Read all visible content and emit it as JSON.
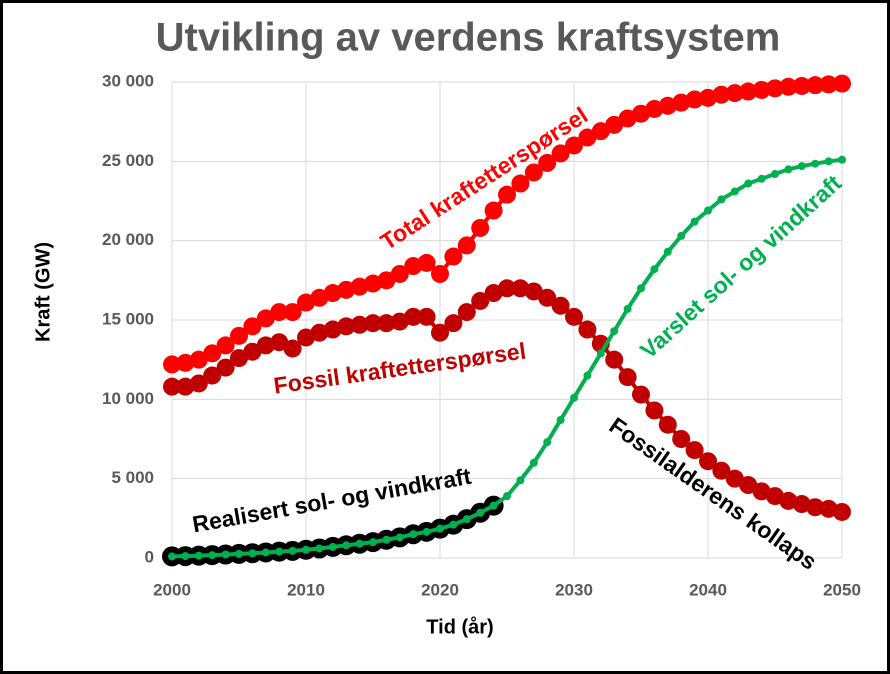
{
  "chart_data": {
    "type": "line",
    "title": "Utvikling av verdens kraftsystem",
    "x_label": "Tid (år)",
    "y_label": "Kraft (GW)",
    "x": [
      2000,
      2001,
      2002,
      2003,
      2004,
      2005,
      2006,
      2007,
      2008,
      2009,
      2010,
      2011,
      2012,
      2013,
      2014,
      2015,
      2016,
      2017,
      2018,
      2019,
      2020,
      2021,
      2022,
      2023,
      2024,
      2025,
      2026,
      2027,
      2028,
      2029,
      2030,
      2031,
      2032,
      2033,
      2034,
      2035,
      2036,
      2037,
      2038,
      2039,
      2040,
      2041,
      2042,
      2043,
      2044,
      2045,
      2046,
      2047,
      2048,
      2049,
      2050
    ],
    "series": [
      {
        "name": "Fossil kraftetterspørsel",
        "color": "#c00000",
        "marker_size": 9,
        "values": [
          10800,
          10800,
          11000,
          11500,
          12000,
          12600,
          13000,
          13400,
          13600,
          13200,
          13900,
          14200,
          14400,
          14600,
          14700,
          14800,
          14800,
          14900,
          15200,
          15200,
          14200,
          14800,
          15500,
          16200,
          16700,
          17000,
          17000,
          16800,
          16400,
          15900,
          15200,
          14400,
          13500,
          12500,
          11400,
          10300,
          9300,
          8400,
          7500,
          6800,
          6100,
          5500,
          5000,
          4600,
          4200,
          3900,
          3600,
          3400,
          3200,
          3100,
          2900
        ]
      },
      {
        "name": "Total kraftetterspørsel",
        "color": "#ff0000",
        "marker_size": 9,
        "values": [
          12200,
          12300,
          12500,
          12900,
          13400,
          14000,
          14600,
          15100,
          15500,
          15500,
          16100,
          16400,
          16700,
          16900,
          17100,
          17300,
          17500,
          17900,
          18400,
          18600,
          17900,
          19000,
          19700,
          20800,
          21900,
          22900,
          23600,
          24300,
          24900,
          25500,
          26000,
          26500,
          26900,
          27300,
          27700,
          28000,
          28300,
          28500,
          28700,
          28900,
          29000,
          29200,
          29300,
          29400,
          29500,
          29600,
          29700,
          29750,
          29800,
          29850,
          29900
        ]
      },
      {
        "name": "Realisert sol- og vindkraft",
        "color": "#000000",
        "marker_size": 10,
        "values": [
          100,
          120,
          150,
          180,
          220,
          260,
          300,
          350,
          400,
          450,
          520,
          600,
          700,
          800,
          900,
          1000,
          1150,
          1300,
          1500,
          1650,
          1850,
          2100,
          2450,
          2850,
          3300,
          null,
          null,
          null,
          null,
          null,
          null,
          null,
          null,
          null,
          null,
          null,
          null,
          null,
          null,
          null,
          null,
          null,
          null,
          null,
          null,
          null,
          null,
          null,
          null,
          null,
          null
        ]
      },
      {
        "name": "Varslet sol- og vindkraft",
        "color": "#00b050",
        "marker_size": 4,
        "values": [
          100,
          120,
          150,
          180,
          220,
          260,
          300,
          350,
          400,
          450,
          520,
          600,
          700,
          800,
          900,
          1000,
          1150,
          1300,
          1500,
          1650,
          1850,
          2100,
          2450,
          2850,
          3300,
          3900,
          4900,
          6000,
          7300,
          8700,
          10100,
          11500,
          12900,
          14300,
          15700,
          17000,
          18200,
          19300,
          20300,
          21200,
          21900,
          22600,
          23100,
          23600,
          23900,
          24200,
          24500,
          24700,
          24850,
          25000,
          25100
        ]
      }
    ],
    "annotations": [
      {
        "text": "Total kraftetterspørsel",
        "color": "#ff0000"
      },
      {
        "text": "Fossil kraftetterspørsel",
        "color": "#c00000"
      },
      {
        "text": "Realisert sol- og vindkraft",
        "color": "#000000"
      },
      {
        "text": "Varslet sol- og vindkraft",
        "color": "#00b050"
      },
      {
        "text": "Fossilalderens kollaps",
        "color": "#000000"
      }
    ],
    "xlim": [
      2000,
      2050
    ],
    "xticks": [
      2000,
      2010,
      2020,
      2030,
      2040,
      2050
    ],
    "ylim": [
      0,
      30000
    ],
    "yticks": [
      0,
      {
        "value": 5000,
        "label": "5 000"
      },
      {
        "value": 10000,
        "label": "10 000"
      },
      {
        "value": 15000,
        "label": "15 000"
      },
      {
        "value": 20000,
        "label": "20 000"
      },
      {
        "value": 25000,
        "label": "25 000"
      },
      {
        "value": 30000,
        "label": "30 000"
      }
    ],
    "grid": true
  }
}
